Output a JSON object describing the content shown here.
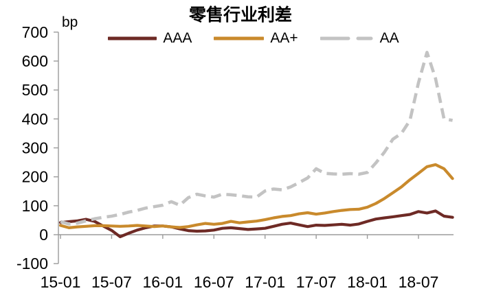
{
  "title": "零售行业利差",
  "y_unit_label": "bp",
  "legend": [
    {
      "label": "AAA",
      "color": "#6E2A25",
      "style": "solid"
    },
    {
      "label": "AA+",
      "color": "#C98A2C",
      "style": "solid"
    },
    {
      "label": "AA",
      "color": "#C3C3C3",
      "style": "dashed"
    }
  ],
  "chart_data": {
    "type": "line",
    "title": "零售行业利差",
    "ylabel": "bp",
    "ylim": [
      -100,
      700
    ],
    "y_ticks": [
      700,
      600,
      500,
      400,
      300,
      200,
      100,
      0,
      -100
    ],
    "x_tick_labels": [
      "15-01",
      "15-07",
      "16-01",
      "16-07",
      "17-01",
      "17-07",
      "18-01",
      "18-07"
    ],
    "x": [
      "15-01",
      "15-02",
      "15-03",
      "15-04",
      "15-05",
      "15-06",
      "15-07",
      "15-08",
      "15-09",
      "15-10",
      "15-11",
      "15-12",
      "16-01",
      "16-02",
      "16-03",
      "16-04",
      "16-05",
      "16-06",
      "16-07",
      "16-08",
      "16-09",
      "16-10",
      "16-11",
      "16-12",
      "17-01",
      "17-02",
      "17-03",
      "17-04",
      "17-05",
      "17-06",
      "17-07",
      "17-08",
      "17-09",
      "17-10",
      "17-11",
      "17-12",
      "18-01",
      "18-02",
      "18-03",
      "18-04",
      "18-05",
      "18-06",
      "18-07",
      "18-08",
      "18-09",
      "18-10",
      "18-11"
    ],
    "series": [
      {
        "name": "AAA",
        "color": "#6E2A25",
        "dashed": false,
        "values": [
          42,
          45,
          48,
          53,
          46,
          30,
          15,
          -7,
          5,
          16,
          24,
          30,
          30,
          27,
          20,
          14,
          12,
          13,
          16,
          22,
          24,
          21,
          18,
          20,
          22,
          29,
          36,
          40,
          34,
          28,
          33,
          32,
          34,
          36,
          33,
          37,
          46,
          54,
          58,
          62,
          66,
          70,
          80,
          75,
          82,
          64,
          60
        ]
      },
      {
        "name": "AA+",
        "color": "#C98A2C",
        "dashed": false,
        "values": [
          32,
          24,
          27,
          29,
          31,
          31,
          30,
          29,
          30,
          32,
          30,
          28,
          30,
          27,
          25,
          28,
          34,
          39,
          36,
          39,
          46,
          41,
          44,
          47,
          52,
          58,
          63,
          66,
          72,
          76,
          71,
          75,
          80,
          84,
          87,
          88,
          95,
          108,
          125,
          145,
          165,
          190,
          212,
          235,
          242,
          228,
          194
        ]
      },
      {
        "name": "AA",
        "color": "#C3C3C3",
        "dashed": true,
        "values": [
          45,
          37,
          40,
          48,
          55,
          60,
          64,
          70,
          78,
          84,
          92,
          97,
          102,
          114,
          102,
          128,
          140,
          134,
          130,
          140,
          138,
          135,
          131,
          130,
          151,
          158,
          155,
          165,
          180,
          196,
          228,
          212,
          210,
          209,
          211,
          209,
          215,
          248,
          285,
          330,
          350,
          395,
          525,
          630,
          540,
          400,
          395
        ]
      }
    ],
    "grid": false,
    "legend_position": "top",
    "axis_color": "#9B9B9B"
  }
}
